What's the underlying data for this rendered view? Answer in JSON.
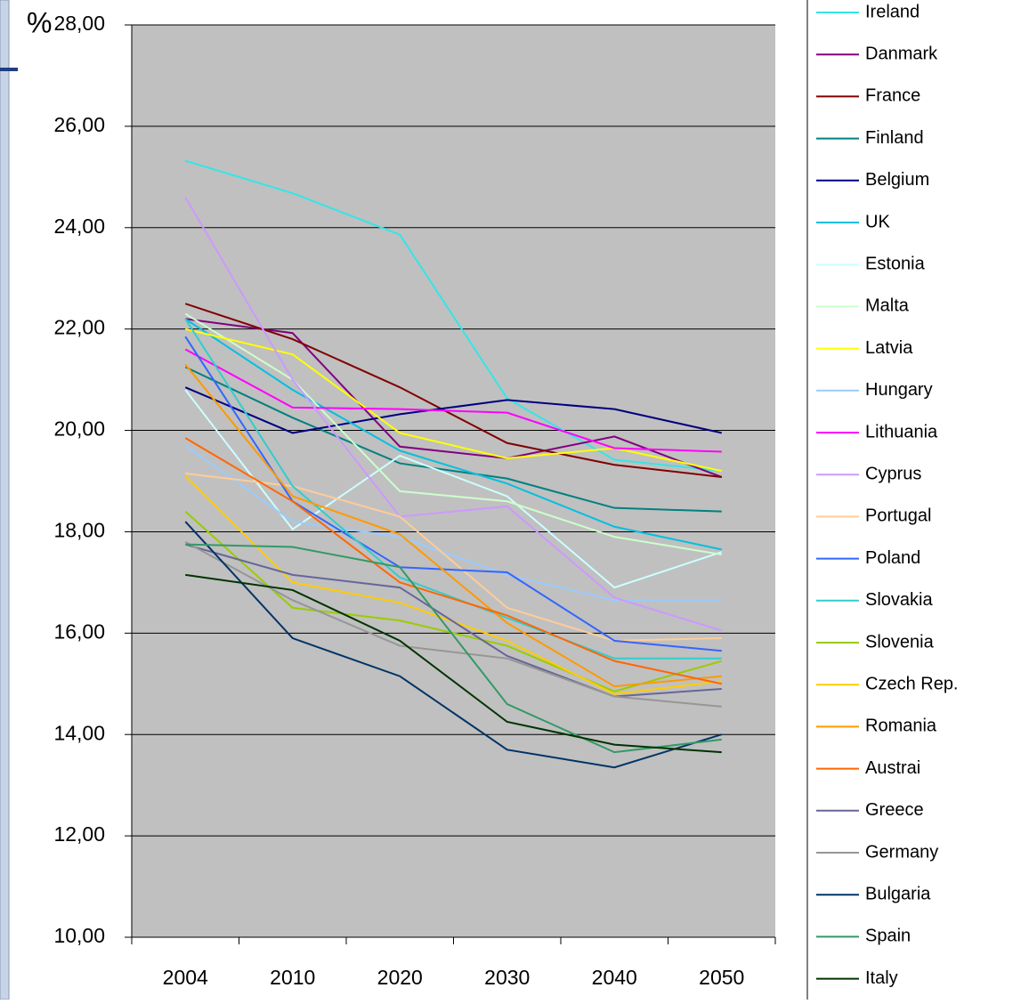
{
  "chart_data": {
    "type": "line",
    "y_label": "%",
    "categories": [
      "2004",
      "2010",
      "2020",
      "2030",
      "2040",
      "2050"
    ],
    "ylim": [
      10,
      28
    ],
    "yticks": [
      {
        "value": 10,
        "label": "10,00"
      },
      {
        "value": 12,
        "label": "12,00"
      },
      {
        "value": 14,
        "label": "14,00"
      },
      {
        "value": 16,
        "label": "16,00"
      },
      {
        "value": 18,
        "label": "18,00"
      },
      {
        "value": 20,
        "label": "20,00"
      },
      {
        "value": 22,
        "label": "22,00"
      },
      {
        "value": 24,
        "label": "24,00"
      },
      {
        "value": 26,
        "label": "26,00"
      },
      {
        "value": 28,
        "label": "28,00"
      }
    ],
    "grid": true,
    "legend": "right",
    "series": [
      {
        "name": "Ireland",
        "color": "#33e6e6",
        "values": [
          25.32,
          24.68,
          23.86,
          20.63,
          19.42,
          19.2
        ]
      },
      {
        "name": "Danmark",
        "color": "#800080",
        "values": [
          22.2,
          21.92,
          19.68,
          19.45,
          19.88,
          19.08
        ]
      },
      {
        "name": "France",
        "color": "#800000",
        "values": [
          22.5,
          21.8,
          20.85,
          19.75,
          19.32,
          19.08
        ]
      },
      {
        "name": "Finland",
        "color": "#008080",
        "values": [
          21.25,
          20.25,
          19.35,
          19.05,
          18.47,
          18.4
        ]
      },
      {
        "name": "Belgium",
        "color": "#000080",
        "values": [
          20.85,
          19.95,
          20.32,
          20.6,
          20.42,
          19.95
        ]
      },
      {
        "name": "UK",
        "color": "#00c0e0",
        "values": [
          22.2,
          20.8,
          19.6,
          18.95,
          18.1,
          17.65
        ]
      },
      {
        "name": "Estonia",
        "color": "#ccffff",
        "values": [
          20.8,
          18.05,
          19.5,
          18.7,
          16.9,
          17.6
        ]
      },
      {
        "name": "Malta",
        "color": "#ccffcc",
        "values": [
          22.3,
          21.0,
          18.8,
          18.6,
          17.9,
          17.55
        ]
      },
      {
        "name": "Latvia",
        "color": "#ffff00",
        "values": [
          22.0,
          21.5,
          19.95,
          19.45,
          19.65,
          19.2
        ]
      },
      {
        "name": "Hungary",
        "color": "#99ccff",
        "values": [
          19.7,
          18.2,
          17.9,
          17.15,
          16.65,
          16.65
        ]
      },
      {
        "name": "Lithuania",
        "color": "#ff00ff",
        "values": [
          21.6,
          20.45,
          20.42,
          20.35,
          19.65,
          19.58
        ]
      },
      {
        "name": "Cyprus",
        "color": "#cc99ff",
        "values": [
          24.6,
          21.0,
          18.3,
          18.5,
          16.7,
          16.05
        ]
      },
      {
        "name": "Portugal",
        "color": "#ffcc99",
        "values": [
          19.15,
          18.9,
          18.3,
          16.5,
          15.85,
          15.9
        ]
      },
      {
        "name": "Poland",
        "color": "#3366ff",
        "values": [
          21.85,
          18.6,
          17.3,
          17.2,
          15.85,
          15.65
        ]
      },
      {
        "name": "Slovakia",
        "color": "#33cccc",
        "values": [
          22.2,
          18.9,
          17.1,
          16.3,
          15.5,
          15.5
        ]
      },
      {
        "name": "Slovenia",
        "color": "#99cc00",
        "values": [
          18.4,
          16.5,
          16.25,
          15.75,
          14.85,
          15.45
        ]
      },
      {
        "name": "Czech Rep.",
        "color": "#ffcc00",
        "values": [
          19.1,
          17.0,
          16.6,
          15.85,
          14.8,
          15.05
        ]
      },
      {
        "name": "Romania",
        "color": "#ff9900",
        "values": [
          21.3,
          18.7,
          17.95,
          16.2,
          14.95,
          15.15
        ]
      },
      {
        "name": "Austrai",
        "color": "#ff6600",
        "values": [
          19.85,
          18.6,
          17.0,
          16.35,
          15.45,
          15.0
        ]
      },
      {
        "name": "Greece",
        "color": "#666699",
        "values": [
          17.75,
          17.15,
          16.9,
          15.55,
          14.75,
          14.9
        ]
      },
      {
        "name": "Germany",
        "color": "#969696",
        "values": [
          17.8,
          16.65,
          15.75,
          15.5,
          14.75,
          14.55
        ]
      },
      {
        "name": "Bulgaria",
        "color": "#003366",
        "values": [
          18.2,
          15.9,
          15.15,
          13.7,
          13.35,
          14.0
        ]
      },
      {
        "name": "Spain",
        "color": "#339966",
        "values": [
          17.75,
          17.7,
          17.3,
          14.6,
          13.65,
          13.9
        ]
      },
      {
        "name": "Italy",
        "color": "#003300",
        "values": [
          17.15,
          16.85,
          15.85,
          14.25,
          13.8,
          13.65
        ]
      }
    ]
  }
}
